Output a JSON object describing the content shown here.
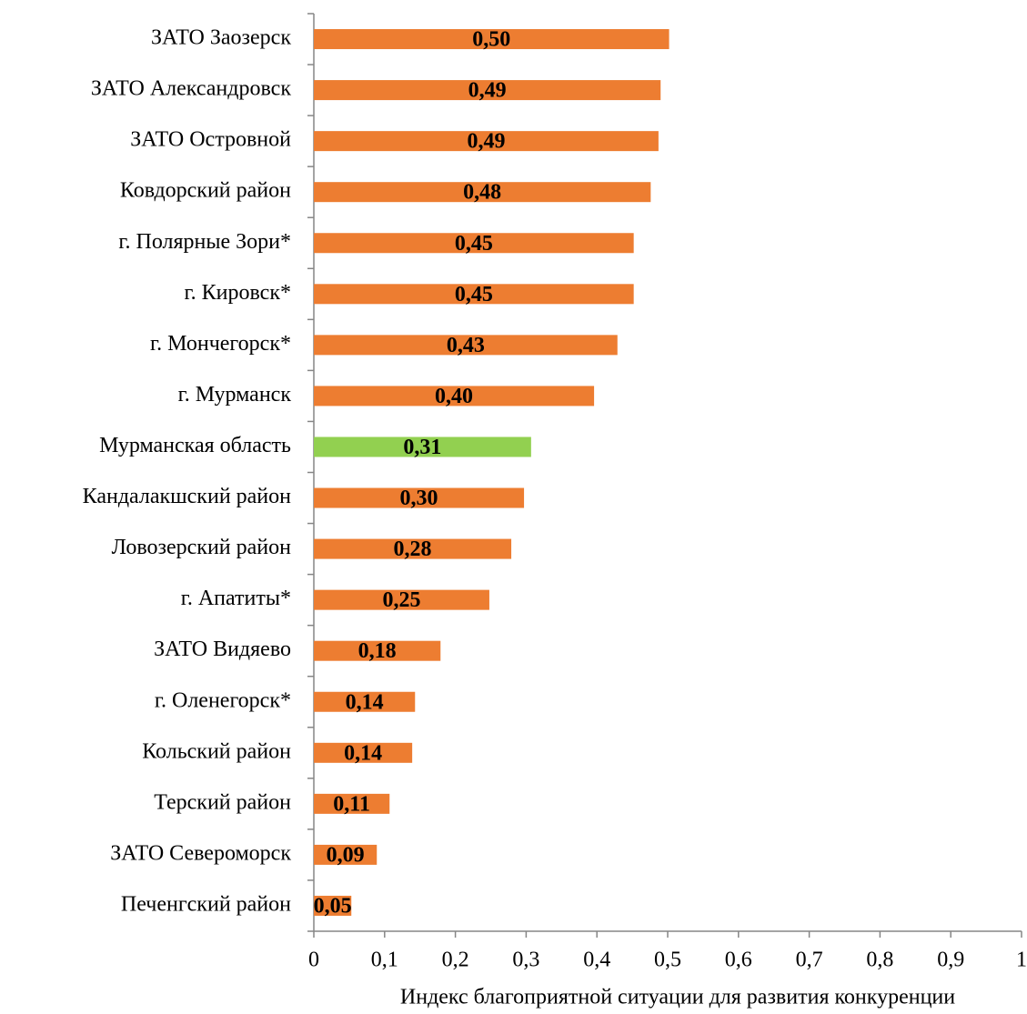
{
  "chart_data": {
    "type": "barh",
    "categories": [
      "ЗАТО Заозерск",
      "ЗАТО Александровск",
      "ЗАТО Островной",
      "Ковдорский район",
      "г. Полярные Зори*",
      "г. Кировск*",
      "г. Мончегорск*",
      "г. Мурманск",
      "Мурманская область",
      "Кандалакшский район",
      "Ловозерский район",
      "г. Апатиты*",
      "ЗАТО Видяево",
      "г. Оленегорск*",
      "Кольский район",
      "Терский район",
      "ЗАТО Североморск",
      "Печенгский район"
    ],
    "values": [
      0.502,
      0.49,
      0.487,
      0.476,
      0.452,
      0.452,
      0.429,
      0.396,
      0.307,
      0.297,
      0.279,
      0.248,
      0.179,
      0.143,
      0.139,
      0.107,
      0.089,
      0.053
    ],
    "value_labels": [
      "0,50",
      "0,49",
      "0,49",
      "0,48",
      "0,45",
      "0,45",
      "0,43",
      "0,40",
      "0,31",
      "0,30",
      "0,28",
      "0,25",
      "0,18",
      "0,14",
      "0,14",
      "0,11",
      "0,09",
      "0,05"
    ],
    "colors": [
      "#ed7d31",
      "#ed7d31",
      "#ed7d31",
      "#ed7d31",
      "#ed7d31",
      "#ed7d31",
      "#ed7d31",
      "#ed7d31",
      "#92d050",
      "#ed7d31",
      "#ed7d31",
      "#ed7d31",
      "#ed7d31",
      "#ed7d31",
      "#ed7d31",
      "#ed7d31",
      "#ed7d31",
      "#ed7d31"
    ],
    "xlabel": "Индекс благоприятной ситуации для развития конкуренции",
    "xlim": [
      0,
      1
    ],
    "xticks": [
      0,
      {
        "value": 0.1,
        "label": "0,1"
      },
      {
        "value": 0.2,
        "label": "0,2"
      },
      {
        "value": 0.3,
        "label": "0,3"
      },
      {
        "value": 0.4,
        "label": "0,4"
      },
      {
        "value": 0.5,
        "label": "0,5"
      },
      {
        "value": 0.6,
        "label": "0,6"
      },
      {
        "value": 0.7,
        "label": "0,7"
      },
      {
        "value": 0.8,
        "label": "0,8"
      },
      {
        "value": 0.9,
        "label": "0,9"
      },
      1
    ],
    "grid": false
  }
}
